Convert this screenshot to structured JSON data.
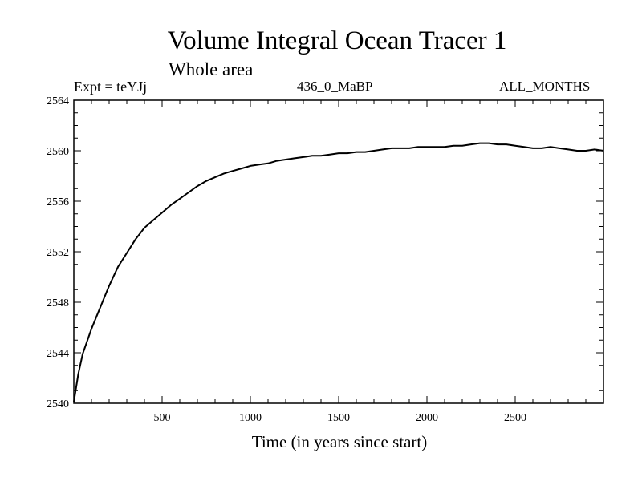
{
  "chart_data": {
    "type": "line",
    "title": "Volume Integral Ocean Tracer 1",
    "subtitle": "Whole area",
    "experiment_label": "Expt = teYJj",
    "run_label": "436_0_MaBP",
    "months_label": "ALL_MONTHS",
    "xlabel": "Time (in years since start)",
    "ylabel": "",
    "xlim": [
      0,
      3000
    ],
    "ylim": [
      2540,
      2564
    ],
    "xticks": [
      500,
      1000,
      1500,
      2000,
      2500
    ],
    "yticks": [
      2540,
      2544,
      2548,
      2552,
      2556,
      2560,
      2564
    ],
    "series": [
      {
        "name": "Tracer 1",
        "x": [
          0,
          25,
          50,
          100,
          150,
          200,
          250,
          300,
          350,
          400,
          450,
          500,
          550,
          600,
          650,
          700,
          750,
          800,
          850,
          900,
          950,
          1000,
          1050,
          1100,
          1150,
          1200,
          1250,
          1300,
          1350,
          1400,
          1450,
          1500,
          1550,
          1600,
          1650,
          1700,
          1750,
          1800,
          1850,
          1900,
          1950,
          2000,
          2050,
          2100,
          2150,
          2200,
          2250,
          2300,
          2350,
          2400,
          2450,
          2500,
          2550,
          2600,
          2650,
          2700,
          2750,
          2800,
          2850,
          2900,
          2950,
          3000
        ],
        "y": [
          2540.1,
          2542.3,
          2543.9,
          2545.9,
          2547.6,
          2549.3,
          2550.8,
          2551.9,
          2553.0,
          2553.9,
          2554.5,
          2555.1,
          2555.7,
          2556.2,
          2556.7,
          2557.2,
          2557.6,
          2557.9,
          2558.2,
          2558.4,
          2558.6,
          2558.8,
          2558.9,
          2559.0,
          2559.2,
          2559.3,
          2559.4,
          2559.5,
          2559.6,
          2559.6,
          2559.7,
          2559.8,
          2559.8,
          2559.9,
          2559.9,
          2560.0,
          2560.1,
          2560.2,
          2560.2,
          2560.2,
          2560.3,
          2560.3,
          2560.3,
          2560.3,
          2560.4,
          2560.4,
          2560.5,
          2560.6,
          2560.6,
          2560.5,
          2560.5,
          2560.4,
          2560.3,
          2560.2,
          2560.2,
          2560.3,
          2560.2,
          2560.1,
          2560.0,
          2560.0,
          2560.1,
          2560.0
        ]
      }
    ]
  }
}
